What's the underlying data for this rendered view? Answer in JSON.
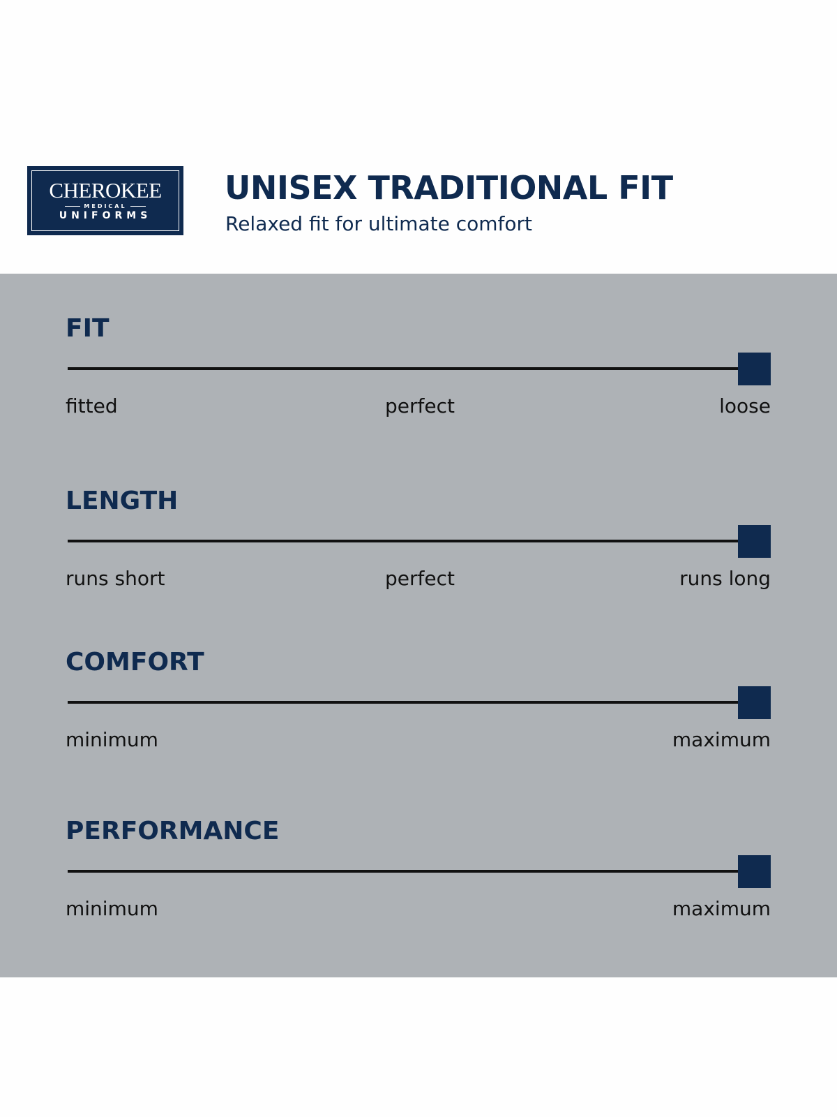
{
  "header": {
    "logo": {
      "brand": "CHEROKEE",
      "sub": "MEDICAL",
      "line2": "UNIFORMS"
    },
    "title": "UNISEX TRADITIONAL FIT",
    "subtitle": "Relaxed fit for ultimate comfort"
  },
  "colors": {
    "navy": "#0f2a4f",
    "panel": "#aeb2b6"
  },
  "scales": [
    {
      "heading": "FIT",
      "labels": [
        "fitted",
        "perfect",
        "loose"
      ],
      "value": 1.0
    },
    {
      "heading": "LENGTH",
      "labels": [
        "runs short",
        "perfect",
        "runs long"
      ],
      "value": 1.0
    },
    {
      "heading": "COMFORT",
      "labels": [
        "minimum",
        "maximum"
      ],
      "value": 1.0
    },
    {
      "heading": "PERFORMANCE",
      "labels": [
        "minimum",
        "maximum"
      ],
      "value": 1.0
    }
  ]
}
